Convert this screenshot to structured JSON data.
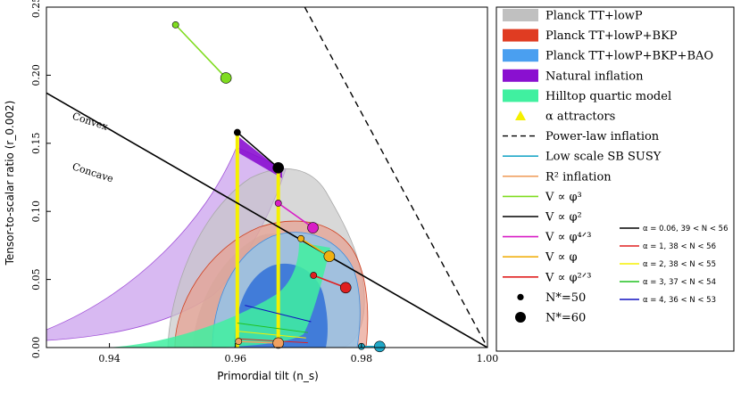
{
  "chart_data": {
    "type": "scatter",
    "xlabel": "Primordial tilt (n_s)",
    "ylabel": "Tensor-to-scalar ratio (r_0.002)",
    "xlim": [
      0.93,
      1.0
    ],
    "ylim": [
      0.0,
      0.25
    ],
    "xticks": [
      "0.94",
      "0.96",
      "0.98",
      "1.00"
    ],
    "yticks": [
      "0.00",
      "0.05",
      "0.10",
      "0.15",
      "0.20",
      "0.25"
    ],
    "annotations": [
      {
        "text": "Convex",
        "x": 0.934,
        "y": 0.168,
        "rotate": 18
      },
      {
        "text": "Concave",
        "x": 0.934,
        "y": 0.131,
        "rotate": 18
      }
    ],
    "lines": [
      {
        "name": "convex-concave divider",
        "color": "#000000",
        "x": [
          0.93,
          1.0
        ],
        "y": [
          0.187,
          0.0
        ]
      },
      {
        "name": "power-law inflation",
        "color": "#000000",
        "dash": true,
        "x": [
          0.971,
          1.0
        ],
        "y": [
          0.25,
          0.0
        ]
      },
      {
        "name": "V ∝ φ^3",
        "color": "#7fdc1f",
        "x": [
          0.9505,
          0.9585
        ],
        "y": [
          0.237,
          0.198
        ]
      },
      {
        "name": "V ∝ φ^2",
        "color": "#000000",
        "x": [
          0.9603,
          0.9668
        ],
        "y": [
          0.158,
          0.132
        ]
      },
      {
        "name": "V ∝ φ^4/3",
        "color": "#d81ec6",
        "x": [
          0.9668,
          0.9723
        ],
        "y": [
          0.106,
          0.088
        ]
      },
      {
        "name": "V ∝ φ",
        "color": "#f0b010",
        "x": [
          0.9704,
          0.9749
        ],
        "y": [
          0.08,
          0.067
        ]
      },
      {
        "name": "V ∝ φ^2/3",
        "color": "#e02020",
        "x": [
          0.9724,
          0.9775
        ],
        "y": [
          0.053,
          0.044
        ]
      },
      {
        "name": "R^2 inflation",
        "color": "#f0a060",
        "x": [
          0.9605,
          0.9668
        ],
        "y": [
          0.0045,
          0.0033
        ]
      },
      {
        "name": "Low scale SB SUSY",
        "color": "#20a8c8",
        "x": [
          0.98,
          0.9829
        ],
        "y": [
          0.0008,
          0.0008
        ]
      }
    ],
    "markers": {
      "N_50": [
        {
          "x": 0.9505,
          "y": 0.237,
          "color": "#7fdc1f"
        },
        {
          "x": 0.9603,
          "y": 0.158,
          "color": "#000000"
        },
        {
          "x": 0.9668,
          "y": 0.106,
          "color": "#d81ec6"
        },
        {
          "x": 0.9704,
          "y": 0.08,
          "color": "#f0b010"
        },
        {
          "x": 0.9724,
          "y": 0.053,
          "color": "#e02020"
        },
        {
          "x": 0.9605,
          "y": 0.0045,
          "color": "#f0a060"
        },
        {
          "x": 0.98,
          "y": 0.0008,
          "color": "#20a8c8"
        }
      ],
      "N_60": [
        {
          "x": 0.9585,
          "y": 0.198,
          "color": "#7fdc1f"
        },
        {
          "x": 0.9668,
          "y": 0.132,
          "color": "#000000"
        },
        {
          "x": 0.9723,
          "y": 0.088,
          "color": "#d81ec6"
        },
        {
          "x": 0.9749,
          "y": 0.067,
          "color": "#f0b010"
        },
        {
          "x": 0.9775,
          "y": 0.044,
          "color": "#e02020"
        },
        {
          "x": 0.9668,
          "y": 0.0033,
          "color": "#f0a060"
        },
        {
          "x": 0.9829,
          "y": 0.0008,
          "color": "#20a8c8"
        }
      ]
    },
    "attractor_lines": [
      {
        "x": 0.9603,
        "y_range": [
          0.0,
          0.158
        ],
        "color": "#f5f000"
      },
      {
        "x": 0.9668,
        "y_range": [
          0.0,
          0.132
        ],
        "color": "#f5f000"
      }
    ],
    "alpha_lines": [
      {
        "label": "α = 0.06, 39 < N < 56",
        "color": "#000000"
      },
      {
        "label": "α = 1, 38 < N < 56",
        "color": "#e02020",
        "x": [
          0.9603,
          0.9715
        ],
        "y": [
          0.0065,
          0.0035
        ]
      },
      {
        "label": "α = 2, 38 < N < 55",
        "color": "#f5f000",
        "x": [
          0.9603,
          0.9712
        ],
        "y": [
          0.012,
          0.007
        ]
      },
      {
        "label": "α = 3, 37 < N < 54",
        "color": "#20c020",
        "x": [
          0.9603,
          0.9715
        ],
        "y": [
          0.018,
          0.011
        ]
      },
      {
        "label": "α = 4, 36 < N < 53",
        "color": "#1010c0",
        "x": [
          0.9615,
          0.972
        ],
        "y": [
          0.031,
          0.019
        ]
      }
    ],
    "contour_colors": {
      "planck_tt_lowp": "#a9a9a9",
      "planck_bkp": "#e04830",
      "planck_bkp_bao": "#3c8ee0",
      "natural_inflation": "#a040d8",
      "hilltop_quartic": "#38f098"
    }
  },
  "legend": {
    "items": [
      {
        "label": "Planck TT+lowP",
        "color": "#c0c0c0",
        "kind": "patch"
      },
      {
        "label": "Planck TT+lowP+BKP",
        "color": "#e03c22",
        "kind": "patch"
      },
      {
        "label": "Planck TT+lowP+BKP+BAO",
        "color": "#4a9ff0",
        "kind": "patch"
      },
      {
        "label": "Natural inflation",
        "color": "#8a10d0",
        "kind": "patch"
      },
      {
        "label": "Hilltop quartic model",
        "color": "#40f0a0",
        "kind": "patch"
      },
      {
        "label": "α attractors",
        "color": "#f5f000",
        "kind": "triangle"
      },
      {
        "label": "Power-law inflation",
        "color": "#000000",
        "kind": "dash"
      },
      {
        "label": "Low scale SB SUSY",
        "color": "#20a8c8",
        "kind": "line"
      },
      {
        "label": "R² inflation",
        "color": "#f0a060",
        "kind": "line"
      },
      {
        "label": "V ∝ φ³",
        "color": "#7fdc1f",
        "kind": "line"
      },
      {
        "label": "V ∝ φ²",
        "color": "#000000",
        "kind": "line"
      },
      {
        "label": "V ∝ φ⁴ᐟ³",
        "color": "#d81ec6",
        "kind": "line"
      },
      {
        "label": "V ∝ φ",
        "color": "#f0b010",
        "kind": "line"
      },
      {
        "label": "V ∝ φ²ᐟ³",
        "color": "#e02020",
        "kind": "line"
      },
      {
        "label": "N*=50",
        "color": "#000000",
        "kind": "dot-small"
      },
      {
        "label": "N*=60",
        "color": "#000000",
        "kind": "dot-large"
      }
    ]
  }
}
